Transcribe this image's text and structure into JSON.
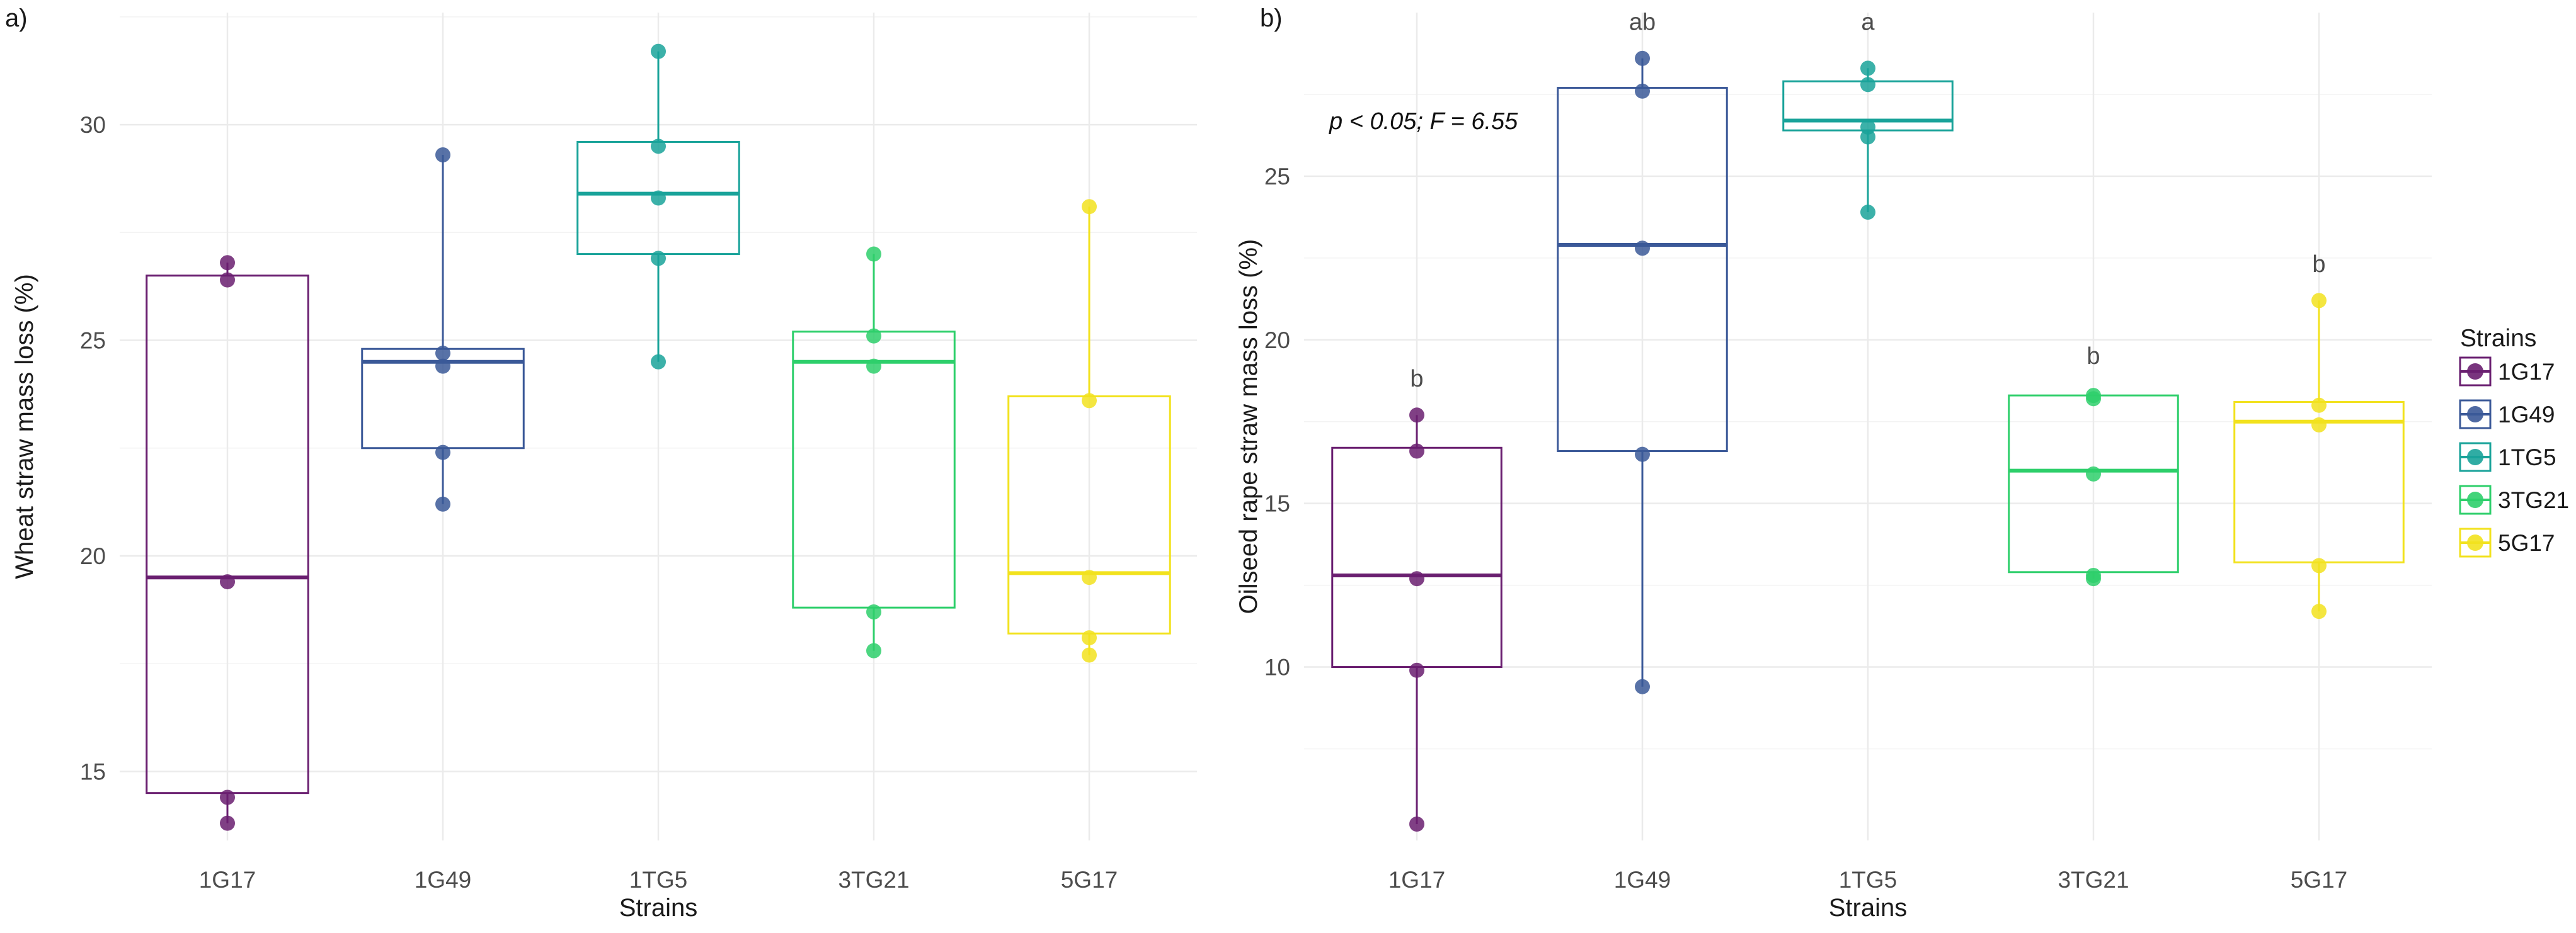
{
  "legend": {
    "title": "Strains",
    "items": [
      "1G17",
      "1G49",
      "1TG5",
      "3TG21",
      "5G17"
    ]
  },
  "colors": {
    "1G17": "#6a1f70",
    "1G49": "#3b5998",
    "1TG5": "#1aa39a",
    "3TG21": "#2ecf6b",
    "5G17": "#f2e21e",
    "grid": "#ebebeb"
  },
  "chart_data": [
    {
      "type": "box",
      "panel_label": "a)",
      "title": "",
      "xlabel": "Strains",
      "ylabel": "Wheat straw mass loss (%)",
      "categories": [
        "1G17",
        "1G49",
        "1TG5",
        "3TG21",
        "5G17"
      ],
      "ylim": [
        13.4,
        32.6
      ],
      "yticks": [
        15,
        20,
        25,
        30
      ],
      "grid": true,
      "legend_position": "none",
      "series": [
        {
          "name": "1G17",
          "box": {
            "q1": 14.5,
            "median": 19.5,
            "q3": 26.5
          },
          "points": [
            26.8,
            26.4,
            19.4,
            14.4,
            13.8
          ]
        },
        {
          "name": "1G49",
          "box": {
            "q1": 22.5,
            "median": 24.5,
            "q3": 24.8
          },
          "points": [
            29.3,
            24.7,
            24.4,
            22.4,
            21.2
          ]
        },
        {
          "name": "1TG5",
          "box": {
            "q1": 27.0,
            "median": 28.4,
            "q3": 29.6
          },
          "points": [
            31.7,
            29.5,
            28.3,
            26.9,
            24.5
          ]
        },
        {
          "name": "3TG21",
          "box": {
            "q1": 18.8,
            "median": 24.5,
            "q3": 25.2
          },
          "points": [
            27.0,
            25.1,
            24.4,
            18.7,
            17.8
          ]
        },
        {
          "name": "5G17",
          "box": {
            "q1": 18.2,
            "median": 19.6,
            "q3": 23.7
          },
          "points": [
            28.1,
            23.6,
            19.5,
            18.1,
            17.7
          ]
        }
      ],
      "annotations": []
    },
    {
      "type": "box",
      "panel_label": "b)",
      "title": "",
      "xlabel": "Strains",
      "ylabel": "Oilseed rape straw mass loss (%)",
      "categories": [
        "1G17",
        "1G49",
        "1TG5",
        "3TG21",
        "5G17"
      ],
      "ylim": [
        4.7,
        30.0
      ],
      "yticks": [
        10,
        15,
        20,
        25
      ],
      "grid": true,
      "legend_position": "right",
      "stat_text": "p < 0.05; F = 6.55",
      "series": [
        {
          "name": "1G17",
          "box": {
            "q1": 10.0,
            "median": 12.8,
            "q3": 16.7
          },
          "points": [
            17.7,
            16.6,
            12.7,
            9.9,
            5.2
          ]
        },
        {
          "name": "1G49",
          "box": {
            "q1": 16.6,
            "median": 22.9,
            "q3": 27.7
          },
          "points": [
            28.6,
            27.6,
            22.8,
            16.5,
            9.4
          ]
        },
        {
          "name": "1TG5",
          "box": {
            "q1": 26.4,
            "median": 26.7,
            "q3": 27.9
          },
          "points": [
            28.3,
            27.8,
            26.5,
            26.2,
            23.9
          ]
        },
        {
          "name": "3TG21",
          "box": {
            "q1": 12.9,
            "median": 16.0,
            "q3": 18.3
          },
          "points": [
            18.3,
            18.2,
            15.9,
            12.8,
            12.7
          ]
        },
        {
          "name": "5G17",
          "box": {
            "q1": 13.2,
            "median": 17.5,
            "q3": 18.1
          },
          "points": [
            21.2,
            18.0,
            17.4,
            13.1,
            11.7
          ]
        }
      ],
      "annotations": [
        {
          "category": "1G17",
          "text": "b",
          "y": 18.8
        },
        {
          "category": "1G49",
          "text": "ab",
          "y": 29.7
        },
        {
          "category": "1TG5",
          "text": "a",
          "y": 29.7
        },
        {
          "category": "3TG21",
          "text": "b",
          "y": 19.5
        },
        {
          "category": "5G17",
          "text": "b",
          "y": 22.3
        }
      ]
    }
  ]
}
